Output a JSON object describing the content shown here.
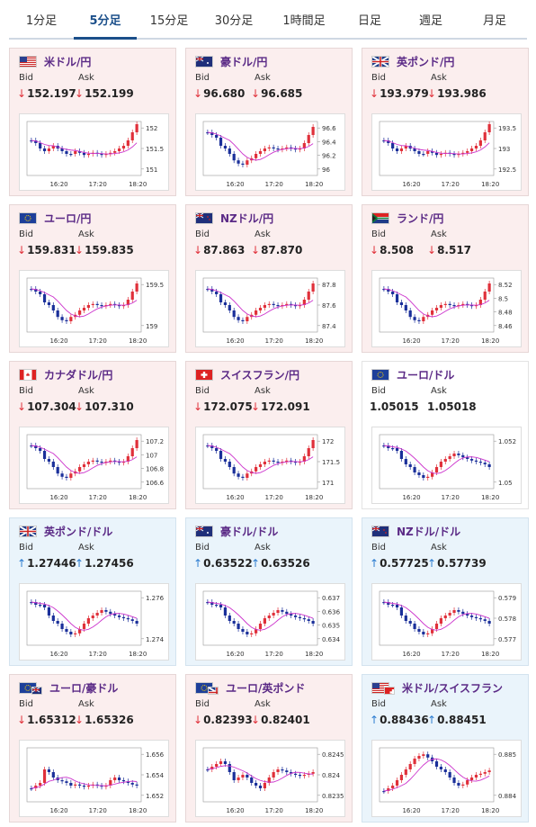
{
  "tabs": [
    {
      "label": "1分足",
      "active": false
    },
    {
      "label": "5分足",
      "active": true
    },
    {
      "label": "15分足",
      "active": false
    },
    {
      "label": "30分足",
      "active": false
    },
    {
      "label": "1時間足",
      "active": false
    },
    {
      "label": "日足",
      "active": false
    },
    {
      "label": "週足",
      "active": false
    },
    {
      "label": "月足",
      "active": false
    }
  ],
  "labels": {
    "bid": "Bid",
    "ask": "Ask"
  },
  "x_ticks": [
    "16:20",
    "17:20",
    "18:20"
  ],
  "colors": {
    "down": "#e0303a",
    "up": "#2a7bd0",
    "title": "#5b2a86",
    "ma": "#cc33cc"
  },
  "cards": [
    {
      "title": "米ドル/円",
      "flag": "us",
      "bid": "152.197",
      "ask": "152.199",
      "dir": "down",
      "bg": "down",
      "y_ticks": [
        "152",
        "151.5",
        "151"
      ],
      "shape": "a"
    },
    {
      "title": "豪ドル/円",
      "flag": "au",
      "bid": "96.680",
      "ask": "96.685",
      "dir": "down",
      "bg": "down",
      "y_ticks": [
        "96.6",
        "96.4",
        "96.2",
        "96"
      ],
      "shape": "b"
    },
    {
      "title": "英ポンド/円",
      "flag": "gb",
      "bid": "193.979",
      "ask": "193.986",
      "dir": "down",
      "bg": "down",
      "y_ticks": [
        "193.5",
        "193",
        "192.5"
      ],
      "shape": "a"
    },
    {
      "title": "ユーロ/円",
      "flag": "eu",
      "bid": "159.831",
      "ask": "159.835",
      "dir": "down",
      "bg": "down",
      "y_ticks": [
        "159.5",
        "159"
      ],
      "shape": "b"
    },
    {
      "title": "NZドル/円",
      "flag": "nz",
      "bid": "87.863",
      "ask": "87.870",
      "dir": "down",
      "bg": "down",
      "y_ticks": [
        "87.8",
        "87.6",
        "87.4"
      ],
      "shape": "b"
    },
    {
      "title": "ランド/円",
      "flag": "za",
      "bid": "8.508",
      "ask": "8.517",
      "dir": "down",
      "bg": "down",
      "y_ticks": [
        "8.52",
        "8.5",
        "8.48",
        "8.46"
      ],
      "shape": "b"
    },
    {
      "title": "カナダドル/円",
      "flag": "ca",
      "bid": "107.304",
      "ask": "107.310",
      "dir": "down",
      "bg": "down",
      "y_ticks": [
        "107.2",
        "107",
        "106.8",
        "106.6"
      ],
      "shape": "b"
    },
    {
      "title": "スイスフラン/円",
      "flag": "ch",
      "bid": "172.075",
      "ask": "172.091",
      "dir": "down",
      "bg": "down",
      "y_ticks": [
        "172",
        "171.5",
        "171"
      ],
      "shape": "b"
    },
    {
      "title": "ユーロ/ドル",
      "flag": "eu",
      "bid": "1.05015",
      "ask": "1.05018",
      "dir": "none",
      "bg": "neutral",
      "y_ticks": [
        "1.052",
        "1.05"
      ],
      "shape": "c"
    },
    {
      "title": "英ポンド/ドル",
      "flag": "gb",
      "bid": "1.27446",
      "ask": "1.27456",
      "dir": "up",
      "bg": "up",
      "y_ticks": [
        "1.276",
        "1.274"
      ],
      "shape": "c"
    },
    {
      "title": "豪ドル/ドル",
      "flag": "au",
      "bid": "0.63522",
      "ask": "0.63526",
      "dir": "up",
      "bg": "up",
      "y_ticks": [
        "0.637",
        "0.636",
        "0.635",
        "0.634"
      ],
      "shape": "c"
    },
    {
      "title": "NZドル/ドル",
      "flag": "nz",
      "bid": "0.57725",
      "ask": "0.57739",
      "dir": "up",
      "bg": "up",
      "y_ticks": [
        "0.579",
        "0.578",
        "0.577"
      ],
      "shape": "c"
    },
    {
      "title": "ユーロ/豪ドル",
      "flag": "euau",
      "bid": "1.65312",
      "ask": "1.65326",
      "dir": "down",
      "bg": "down",
      "y_ticks": [
        "1.656",
        "1.654",
        "1.652"
      ],
      "shape": "d"
    },
    {
      "title": "ユーロ/英ポンド",
      "flag": "eugb",
      "bid": "0.82393",
      "ask": "0.82401",
      "dir": "down",
      "bg": "down",
      "y_ticks": [
        "0.8245",
        "0.824",
        "0.8235"
      ],
      "shape": "e"
    },
    {
      "title": "米ドル/スイスフラン",
      "flag": "usch",
      "bid": "0.88436",
      "ask": "0.88451",
      "dir": "up",
      "bg": "up",
      "y_ticks": [
        "0.885",
        "0.884"
      ],
      "shape": "f"
    }
  ]
}
